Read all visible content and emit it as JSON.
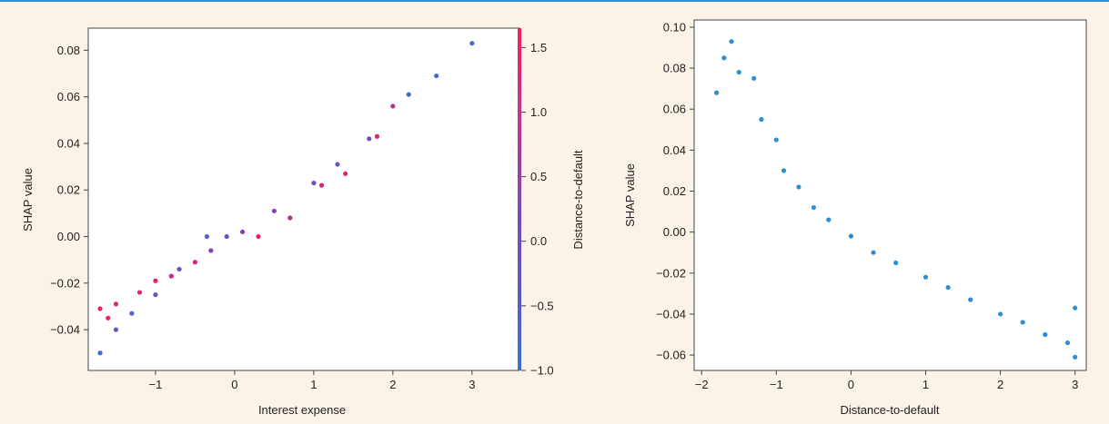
{
  "colors": {
    "background": "#fbf3e7",
    "top_rule": "#2f8fd6",
    "low": "#3b6fd1",
    "mid": "#8a3fb0",
    "high": "#ff1a5c",
    "single_series": "#2b8fd3"
  },
  "chart_data": [
    {
      "type": "scatter",
      "title": "",
      "xlabel": "Interest expense",
      "ylabel": "SHAP value",
      "xlim": [
        -1.85,
        3.6
      ],
      "ylim": [
        -0.0575,
        0.0895
      ],
      "x_ticks": [
        -1,
        0,
        1,
        2,
        3
      ],
      "x_tick_labels": [
        "−1",
        "0",
        "1",
        "2",
        "3"
      ],
      "y_ticks": [
        -0.04,
        -0.02,
        0.0,
        0.02,
        0.04,
        0.06,
        0.08
      ],
      "y_tick_labels": [
        "−0.04",
        "−0.02",
        "0.00",
        "0.02",
        "0.04",
        "0.06",
        "0.08"
      ],
      "grid": false,
      "colorbar": {
        "label": "Distance-to-default",
        "range": [
          -1.0,
          1.65
        ],
        "ticks": [
          -1.0,
          -0.5,
          0.0,
          0.5,
          1.0,
          1.5
        ],
        "tick_labels": [
          "−1.0",
          "−0.5",
          "0.0",
          "0.5",
          "1.0",
          "1.5"
        ]
      },
      "points": [
        {
          "x": -1.7,
          "y": -0.05,
          "c": -0.9
        },
        {
          "x": -1.7,
          "y": -0.031,
          "c": 1.5
        },
        {
          "x": -1.6,
          "y": -0.035,
          "c": 1.3
        },
        {
          "x": -1.5,
          "y": -0.04,
          "c": -0.4
        },
        {
          "x": -1.5,
          "y": -0.029,
          "c": 1.4
        },
        {
          "x": -1.3,
          "y": -0.033,
          "c": -0.6
        },
        {
          "x": -1.2,
          "y": -0.024,
          "c": 1.2
        },
        {
          "x": -1.0,
          "y": -0.025,
          "c": -0.3
        },
        {
          "x": -1.0,
          "y": -0.019,
          "c": 1.3
        },
        {
          "x": -0.8,
          "y": -0.017,
          "c": 1.1
        },
        {
          "x": -0.7,
          "y": -0.014,
          "c": -0.2
        },
        {
          "x": -0.5,
          "y": -0.011,
          "c": 0.9
        },
        {
          "x": -0.3,
          "y": -0.006,
          "c": 0.2
        },
        {
          "x": -0.35,
          "y": 0.0,
          "c": -0.7
        },
        {
          "x": -0.1,
          "y": 0.0,
          "c": -0.4
        },
        {
          "x": 0.1,
          "y": 0.002,
          "c": 0.3
        },
        {
          "x": 0.3,
          "y": 0.0,
          "c": 1.4
        },
        {
          "x": 0.5,
          "y": 0.011,
          "c": 0.3
        },
        {
          "x": 0.7,
          "y": 0.008,
          "c": 1.0
        },
        {
          "x": 1.0,
          "y": 0.023,
          "c": -0.1
        },
        {
          "x": 1.1,
          "y": 0.022,
          "c": 1.2
        },
        {
          "x": 1.3,
          "y": 0.031,
          "c": -0.4
        },
        {
          "x": 1.4,
          "y": 0.027,
          "c": 1.3
        },
        {
          "x": 1.7,
          "y": 0.042,
          "c": -0.2
        },
        {
          "x": 1.8,
          "y": 0.043,
          "c": 1.2
        },
        {
          "x": 2.0,
          "y": 0.056,
          "c": 0.8
        },
        {
          "x": 2.2,
          "y": 0.061,
          "c": -0.9
        },
        {
          "x": 2.55,
          "y": 0.069,
          "c": -0.9
        },
        {
          "x": 3.0,
          "y": 0.083,
          "c": -0.8
        }
      ]
    },
    {
      "type": "scatter",
      "title": "",
      "xlabel": "Distance-to-default",
      "ylabel": "SHAP value",
      "xlim": [
        -2.1,
        3.15
      ],
      "ylim": [
        -0.0675,
        0.1035
      ],
      "x_ticks": [
        -2,
        -1,
        0,
        1,
        2,
        3
      ],
      "x_tick_labels": [
        "−2",
        "−1",
        "0",
        "1",
        "2",
        "3"
      ],
      "y_ticks": [
        -0.06,
        -0.04,
        -0.02,
        0.0,
        0.02,
        0.04,
        0.06,
        0.08,
        0.1
      ],
      "y_tick_labels": [
        "−0.06",
        "−0.04",
        "−0.02",
        "0.00",
        "0.02",
        "0.04",
        "0.06",
        "0.08",
        "0.10"
      ],
      "grid": false,
      "points": [
        {
          "x": -1.8,
          "y": 0.068
        },
        {
          "x": -1.7,
          "y": 0.085
        },
        {
          "x": -1.6,
          "y": 0.093
        },
        {
          "x": -1.5,
          "y": 0.078
        },
        {
          "x": -1.3,
          "y": 0.075
        },
        {
          "x": -1.2,
          "y": 0.055
        },
        {
          "x": -1.0,
          "y": 0.045
        },
        {
          "x": -0.9,
          "y": 0.03
        },
        {
          "x": -0.7,
          "y": 0.022
        },
        {
          "x": -0.5,
          "y": 0.012
        },
        {
          "x": -0.3,
          "y": 0.006
        },
        {
          "x": 0.0,
          "y": -0.002
        },
        {
          "x": 0.3,
          "y": -0.01
        },
        {
          "x": 0.6,
          "y": -0.015
        },
        {
          "x": 1.0,
          "y": -0.022
        },
        {
          "x": 1.3,
          "y": -0.027
        },
        {
          "x": 1.6,
          "y": -0.033
        },
        {
          "x": 2.0,
          "y": -0.04
        },
        {
          "x": 2.3,
          "y": -0.044
        },
        {
          "x": 2.6,
          "y": -0.05
        },
        {
          "x": 2.9,
          "y": -0.054
        },
        {
          "x": 3.0,
          "y": -0.061
        },
        {
          "x": 3.0,
          "y": -0.037
        }
      ]
    }
  ]
}
